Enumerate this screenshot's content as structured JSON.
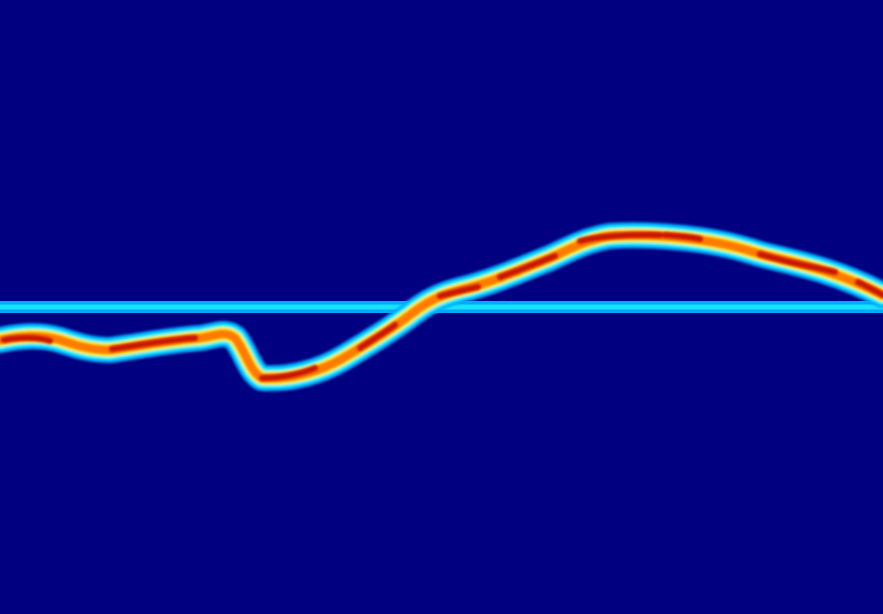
{
  "colors": {
    "background": "#000080",
    "baseline": "#19e2ff",
    "halo_outer": "#00a8ff",
    "halo_mid": "#14f0ff",
    "band_yellow": "#ffee00",
    "band_orange": "#ff7a00",
    "core_red": "#c81200"
  },
  "content": {
    "text": []
  }
}
